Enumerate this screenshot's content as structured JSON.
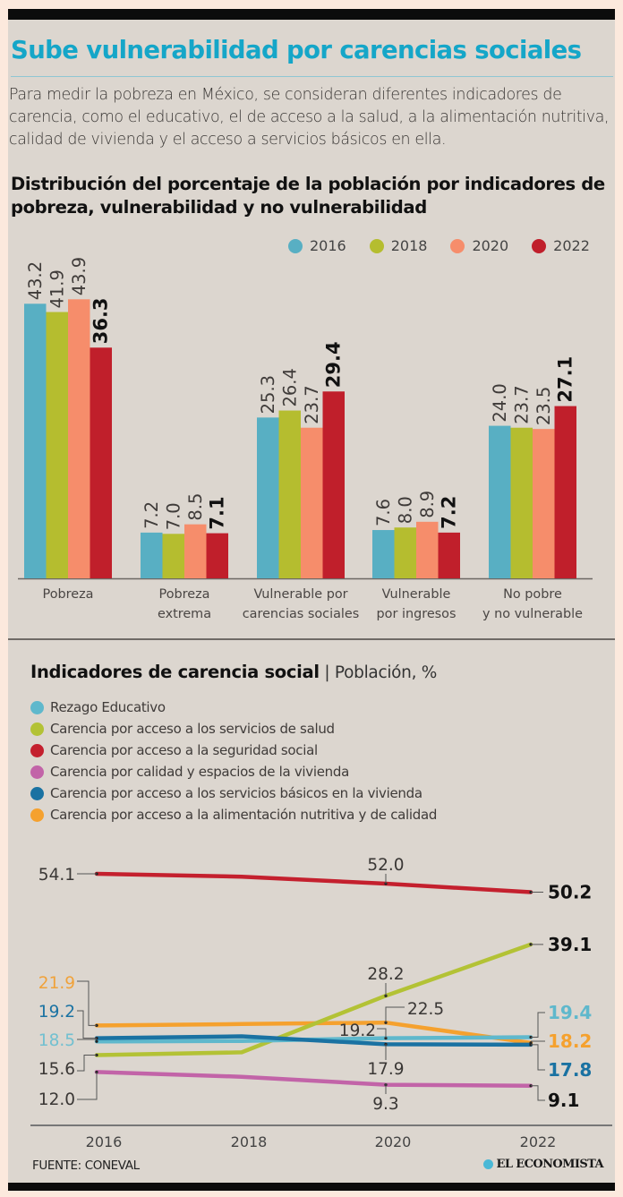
{
  "header": {
    "title": "Sube vulnerabilidad por carencias sociales",
    "intro": "Para medir la pobreza en México, se consideran diferentes indicadores de carencia, como el educativo, el de acceso a la salud, a la alimentación nutritiva, calidad de vivienda y el acceso a servicios básicos en ella."
  },
  "footer": {
    "source": "FUENTE: CONEVAL",
    "brand": "EL ECONOMISTA"
  },
  "chart_data": [
    {
      "type": "bar",
      "title": "Distribución del porcentaje de la población por indicadores de pobreza, vulnerabilidad y no vulnerabilidad",
      "xlabel": "",
      "ylabel": "",
      "legend_position": "top-right",
      "grid": false,
      "categories": [
        "Pobreza",
        "Pobreza extrema",
        "Vulnerable por carencias sociales",
        "Vulnerable por ingresos",
        "No pobre y no vulnerable"
      ],
      "category_lines": [
        [
          "Pobreza"
        ],
        [
          "Pobreza",
          "extrema"
        ],
        [
          "Vulnerable por",
          "carencias sociales"
        ],
        [
          "Vulnerable",
          "por ingresos"
        ],
        [
          "No pobre",
          "y no vulnerable"
        ]
      ],
      "series": [
        {
          "name": "2016",
          "color": "#58afc3",
          "values": [
            43.2,
            7.2,
            25.3,
            7.6,
            24.0
          ]
        },
        {
          "name": "2018",
          "color": "#b5bd2f",
          "values": [
            41.9,
            7.0,
            26.4,
            8.0,
            23.7
          ]
        },
        {
          "name": "2020",
          "color": "#f68d6b",
          "values": [
            43.9,
            8.5,
            23.7,
            8.9,
            23.5
          ]
        },
        {
          "name": "2022",
          "color": "#c01f2b",
          "values": [
            36.3,
            7.1,
            29.4,
            7.2,
            27.1
          ],
          "labels_bold": true
        }
      ],
      "ylim": [
        0,
        45
      ]
    },
    {
      "type": "line",
      "title": "Indicadores de carencia social",
      "subtitle": "Población, %",
      "xlabel": "",
      "ylabel": "",
      "legend_position": "top-left",
      "grid": false,
      "x": [
        "2016",
        "2018",
        "2020",
        "2022"
      ],
      "series": [
        {
          "name": "Rezago Educativo",
          "color": "#5fb8cc",
          "values": [
            18.5,
            18.6,
            19.2,
            19.4
          ]
        },
        {
          "name": "Carencia por acceso a los servicios de salud",
          "color": "#b3c235",
          "values": [
            15.6,
            16.2,
            28.2,
            39.1
          ]
        },
        {
          "name": "Carencia por acceso a la seguridad social",
          "color": "#c4202e",
          "values": [
            54.1,
            53.5,
            52.0,
            50.2
          ]
        },
        {
          "name": "Carencia por calidad y espacios de la vivienda",
          "color": "#c264a8",
          "values": [
            12.0,
            11.0,
            9.3,
            9.1
          ]
        },
        {
          "name": "Carencia por acceso a los servicios básicos en la vivienda",
          "color": "#1a72a2",
          "values": [
            19.2,
            19.6,
            17.9,
            17.8
          ]
        },
        {
          "name": "Carencia por acceso a la alimentación nutritiva y de calidad",
          "color": "#f5a12e",
          "values": [
            21.9,
            22.2,
            22.5,
            18.2
          ]
        }
      ],
      "annotations": {
        "start": [
          {
            "text": "54.1",
            "series": 2,
            "color": "#3a3735"
          },
          {
            "text": "21.9",
            "series": 5,
            "color": "#f0a23a"
          },
          {
            "text": "19.2",
            "series": 4,
            "color": "#1a72a2"
          },
          {
            "text": "18.5",
            "series": 0,
            "color": "#72c0d0"
          },
          {
            "text": "15.6",
            "series": 1,
            "color": "#3a3735"
          },
          {
            "text": "12.0",
            "series": 3,
            "color": "#3a3735"
          }
        ],
        "mid": [
          {
            "text": "52.0",
            "series": 2
          },
          {
            "text": "28.2",
            "series": 1
          },
          {
            "text": "22.5",
            "series": 5
          },
          {
            "text": "19.2",
            "series": 0
          },
          {
            "text": "17.9",
            "series": 4
          },
          {
            "text": "9.3",
            "series": 3
          }
        ],
        "end": [
          {
            "text": "50.2",
            "series": 2,
            "color": "#111111"
          },
          {
            "text": "39.1",
            "series": 1,
            "color": "#111111"
          },
          {
            "text": "19.4",
            "series": 0,
            "color": "#5fb8cc"
          },
          {
            "text": "18.2",
            "series": 5,
            "color": "#f5a12e"
          },
          {
            "text": "17.8",
            "series": 4,
            "color": "#1a72a2"
          },
          {
            "text": "9.1",
            "series": 3,
            "color": "#111111"
          }
        ]
      },
      "ylim": [
        5,
        56
      ]
    }
  ]
}
